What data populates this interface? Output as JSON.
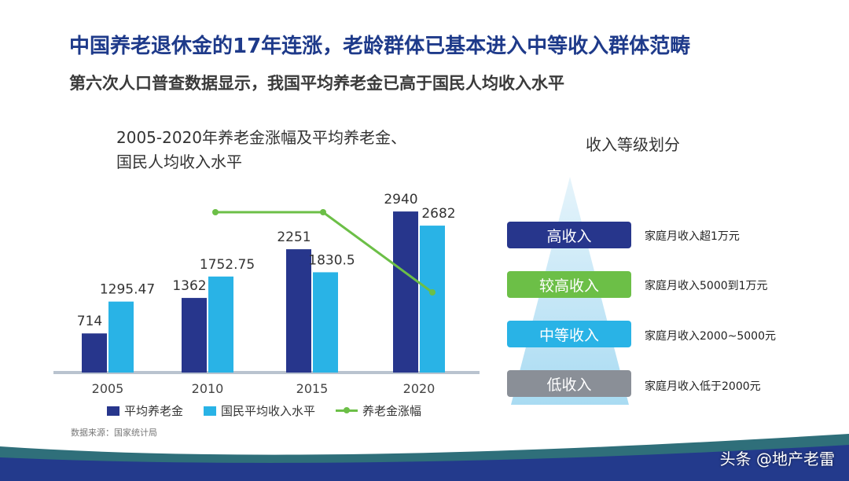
{
  "headline": "中国养老退休金的17年连涨，老龄群体已基本进入中等收入群体范畴",
  "subheadline": "第六次人口普查数据显示，我国平均养老金已高于国民人均收入水平",
  "colors": {
    "pension": "#27368c",
    "income": "#29b3e6",
    "growth": "#6cbf47",
    "tier_high": "#27368c",
    "tier_upper_middle": "#6cbf47",
    "tier_middle": "#29b3e6",
    "tier_low": "#8a8f97"
  },
  "chart_data": {
    "type": "bar",
    "title_lines": [
      "2005-2020年养老金涨幅及平均养老金、",
      "国民人均收入水平"
    ],
    "categories": [
      "2005",
      "2010",
      "2015",
      "2020"
    ],
    "series": [
      {
        "name": "平均养老金",
        "values": [
          714,
          1362,
          2251,
          2940
        ]
      },
      {
        "name": "国民平均收入水平",
        "values": [
          1295.47,
          1752.75,
          1830.5,
          2682
        ]
      }
    ],
    "value_labels": [
      [
        "714",
        "1362",
        "2251",
        "2940"
      ],
      [
        "1295.47",
        "1752.75",
        "1830.5",
        "2682"
      ]
    ],
    "line_series": {
      "name": "养老金涨幅",
      "points": [
        {
          "x": "2010"
        },
        {
          "x": "2015"
        },
        {
          "x": "2020"
        }
      ]
    },
    "ylim": [
      0,
      3300
    ],
    "grid": false,
    "legend": "bottom"
  },
  "source": "数据来源：国家统计局",
  "tiers": {
    "title": "收入等级划分",
    "items": [
      {
        "label": "高收入",
        "desc": "家庭月收入超1万元"
      },
      {
        "label": "较高收入",
        "desc": "家庭月收入5000到1万元"
      },
      {
        "label": "中等收入",
        "desc": "家庭月收入2000~5000元"
      },
      {
        "label": "低收入",
        "desc": "家庭月收入低于2000元"
      }
    ]
  },
  "credit": "头条 @地产老雷"
}
